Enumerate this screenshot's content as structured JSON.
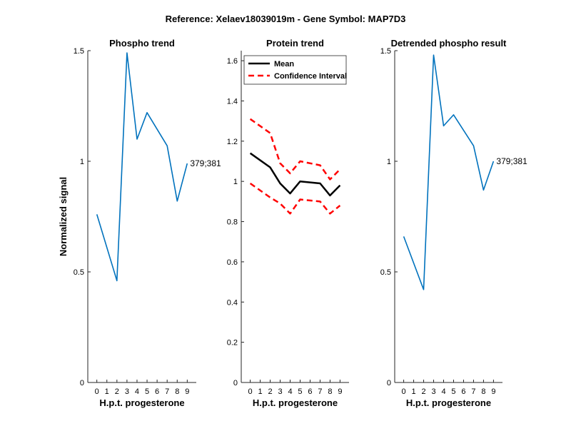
{
  "figure": {
    "suptitle": "Reference:  Xelaev18039019m - Gene Symbol:  MAP7D3"
  },
  "chart_data": [
    {
      "type": "line",
      "title": "Phospho trend",
      "xlabel": "H.p.t. progesterone",
      "ylabel": "Normalized signal",
      "x": [
        0,
        2,
        3,
        4,
        5,
        7,
        8,
        9
      ],
      "xticks": [
        "0",
        "1",
        "2",
        "3",
        "4",
        "5",
        "6",
        "7",
        "8",
        "9"
      ],
      "ylim": [
        0,
        1.5
      ],
      "yticks": [
        0,
        0.5,
        1,
        1.5
      ],
      "ytick_labels": [
        "0",
        "0.5",
        "1",
        "1.5"
      ],
      "series": [
        {
          "values": [
            0.76,
            0.46,
            1.49,
            1.1,
            1.22,
            1.07,
            0.82,
            0.99
          ],
          "color": "#0072BD"
        }
      ],
      "annotation": "379;381"
    },
    {
      "type": "line",
      "title": "Protein trend",
      "xlabel": "H.p.t. progesterone",
      "ylabel": "",
      "x": [
        0,
        2,
        3,
        4,
        5,
        7,
        8,
        9
      ],
      "xticks": [
        "0",
        "1",
        "2",
        "3",
        "4",
        "5",
        "6",
        "7",
        "8",
        "9"
      ],
      "ylim": [
        0,
        1.65
      ],
      "yticks": [
        0,
        0.2,
        0.4,
        0.6,
        0.8,
        1.0,
        1.2,
        1.4,
        1.6
      ],
      "ytick_labels": [
        "0",
        "0.2",
        "0.4",
        "0.6",
        "0.8",
        "1",
        "1.2",
        "1.4",
        "1.6"
      ],
      "legend_position": "top-left",
      "series": [
        {
          "name": "Mean",
          "values": [
            1.14,
            1.07,
            0.99,
            0.94,
            1.0,
            0.99,
            0.93,
            0.98
          ],
          "color": "#000000",
          "style": "solid"
        },
        {
          "name": "Confidence Interval",
          "values": [
            1.31,
            1.24,
            1.09,
            1.04,
            1.1,
            1.08,
            1.01,
            1.06
          ],
          "color": "#ff0000",
          "style": "dashed"
        },
        {
          "values": [
            0.99,
            0.92,
            0.89,
            0.84,
            0.91,
            0.9,
            0.84,
            0.88
          ],
          "color": "#ff0000",
          "style": "dashed"
        }
      ]
    },
    {
      "type": "line",
      "title": "Detrended phospho result",
      "xlabel": "H.p.t. progesterone",
      "ylabel": "",
      "x": [
        0,
        2,
        3,
        4,
        5,
        7,
        8,
        9
      ],
      "xticks": [
        "0",
        "1",
        "2",
        "3",
        "4",
        "5",
        "6",
        "7",
        "8",
        "9"
      ],
      "ylim": [
        0,
        1.5
      ],
      "yticks": [
        0,
        0.5,
        1,
        1.5
      ],
      "ytick_labels": [
        "0",
        "0.5",
        "1",
        "1.5"
      ],
      "series": [
        {
          "values": [
            0.66,
            0.42,
            1.48,
            1.16,
            1.21,
            1.07,
            0.87,
            1.0
          ],
          "color": "#0072BD"
        }
      ],
      "annotation": "379;381"
    }
  ]
}
